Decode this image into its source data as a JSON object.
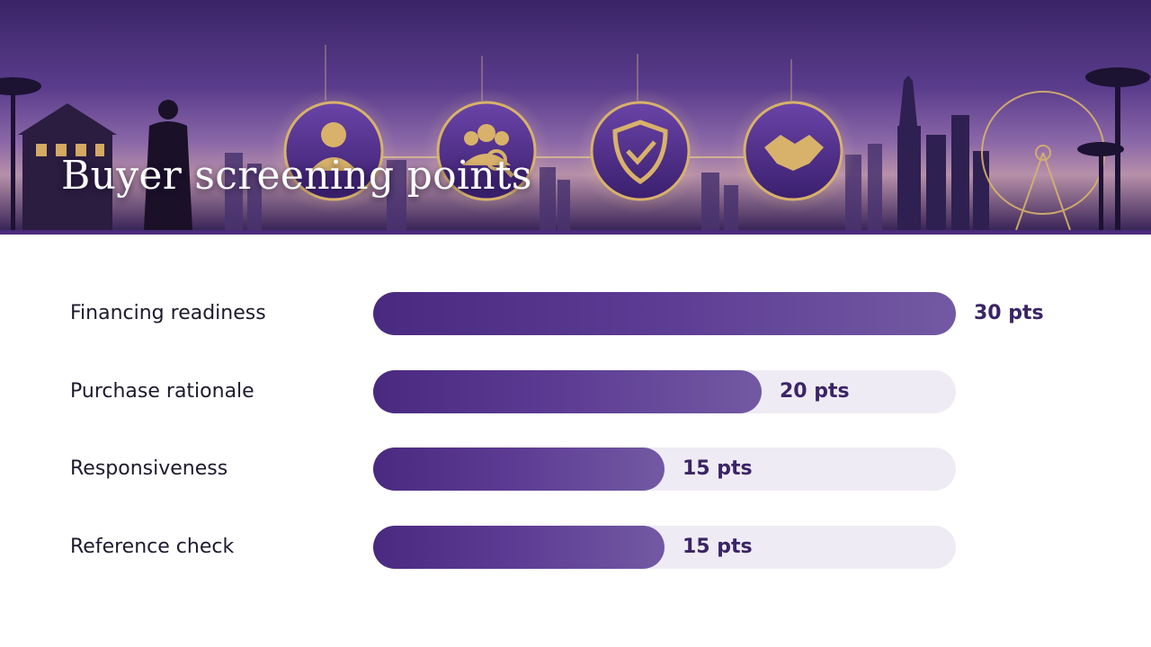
{
  "slide": {
    "title": "Buyer screening points"
  },
  "banner": {
    "icons": [
      "user-search-icon",
      "team-search-icon",
      "shield-check-icon",
      "handshake-icon"
    ]
  },
  "colors": {
    "bar_fill_start": "#4a2a80",
    "bar_fill_end": "#7359a3",
    "bar_track": "#efebf4",
    "value_text": "#3a2466",
    "banner_strip": "#4a2a7a"
  },
  "chart_data": {
    "type": "bar",
    "orientation": "horizontal",
    "title": "",
    "xlabel": "",
    "ylabel": "",
    "xlim": [
      0,
      30
    ],
    "grid": false,
    "categories": [
      "Financing readiness",
      "Purchase rationale",
      "Responsiveness",
      "Reference check"
    ],
    "values": [
      30,
      20,
      15,
      15
    ],
    "value_labels": [
      "30 pts",
      "20 pts",
      "15 pts",
      "15 pts"
    ]
  }
}
